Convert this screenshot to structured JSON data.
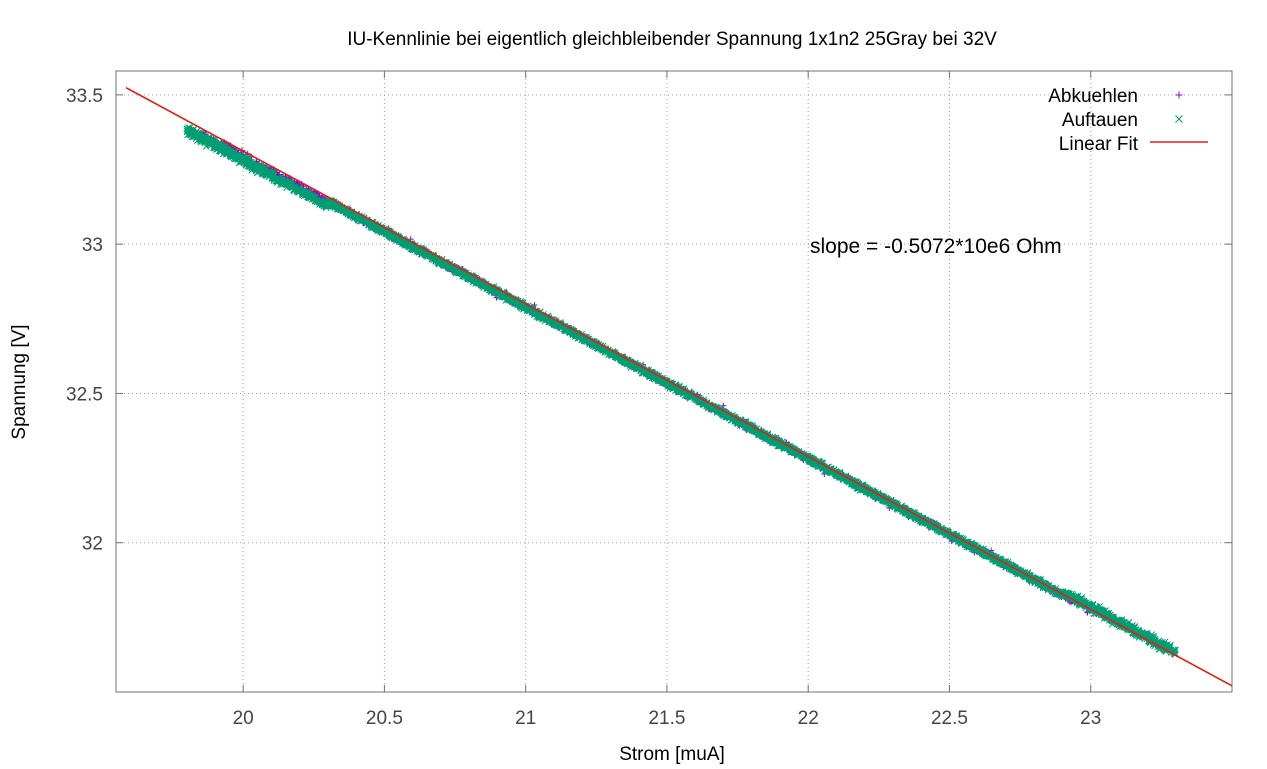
{
  "chart_data": {
    "type": "scatter",
    "title": "IU-Kennlinie bei eigentlich gleichbleibender Spannung 1x1n2 25Gray bei 32V",
    "xlabel": "Strom [muA]",
    "ylabel": "Spannung [V]",
    "xlim": [
      19.55,
      23.5
    ],
    "ylim": [
      31.5,
      33.58
    ],
    "x_ticks": [
      "20",
      "20.5",
      "21",
      "21.5",
      "22",
      "22.5",
      "23"
    ],
    "y_ticks": [
      "32",
      "32.5",
      "33",
      "33.5"
    ],
    "grid": true,
    "legend_position": "top-right",
    "annotation": "slope = -0.5072*10e6 Ohm",
    "series": [
      {
        "name": "Abkuehlen",
        "marker": "+",
        "color": "#9400d3",
        "x_range": [
          19.85,
          23.0
        ],
        "points": [
          [
            19.9,
            33.39
          ],
          [
            20.1,
            33.28
          ],
          [
            20.3,
            33.19
          ],
          [
            20.6,
            33.02
          ],
          [
            20.9,
            32.88
          ],
          [
            21.1,
            32.79
          ],
          [
            21.3,
            32.67
          ],
          [
            21.5,
            32.56
          ],
          [
            21.8,
            32.45
          ],
          [
            22.0,
            32.34
          ],
          [
            22.25,
            32.22
          ],
          [
            22.5,
            32.09
          ],
          [
            22.7,
            31.99
          ],
          [
            22.9,
            31.91
          ]
        ]
      },
      {
        "name": "Auftauen",
        "marker": "x",
        "color": "#009e73",
        "x_range": [
          19.8,
          23.3
        ],
        "points": [
          [
            19.8,
            33.43
          ],
          [
            20.0,
            33.36
          ],
          [
            20.2,
            33.27
          ],
          [
            20.5,
            33.12
          ],
          [
            20.8,
            32.95
          ],
          [
            21.0,
            32.85
          ],
          [
            21.3,
            32.7
          ],
          [
            21.6,
            32.55
          ],
          [
            21.9,
            32.39
          ],
          [
            22.2,
            32.24
          ],
          [
            22.5,
            32.1
          ],
          [
            22.8,
            31.95
          ],
          [
            23.0,
            31.84
          ],
          [
            23.3,
            31.71
          ]
        ]
      },
      {
        "name": "Linear Fit",
        "type": "line",
        "color": "#e51e10",
        "slope": -0.5072,
        "intercept": 43.44
      }
    ]
  }
}
